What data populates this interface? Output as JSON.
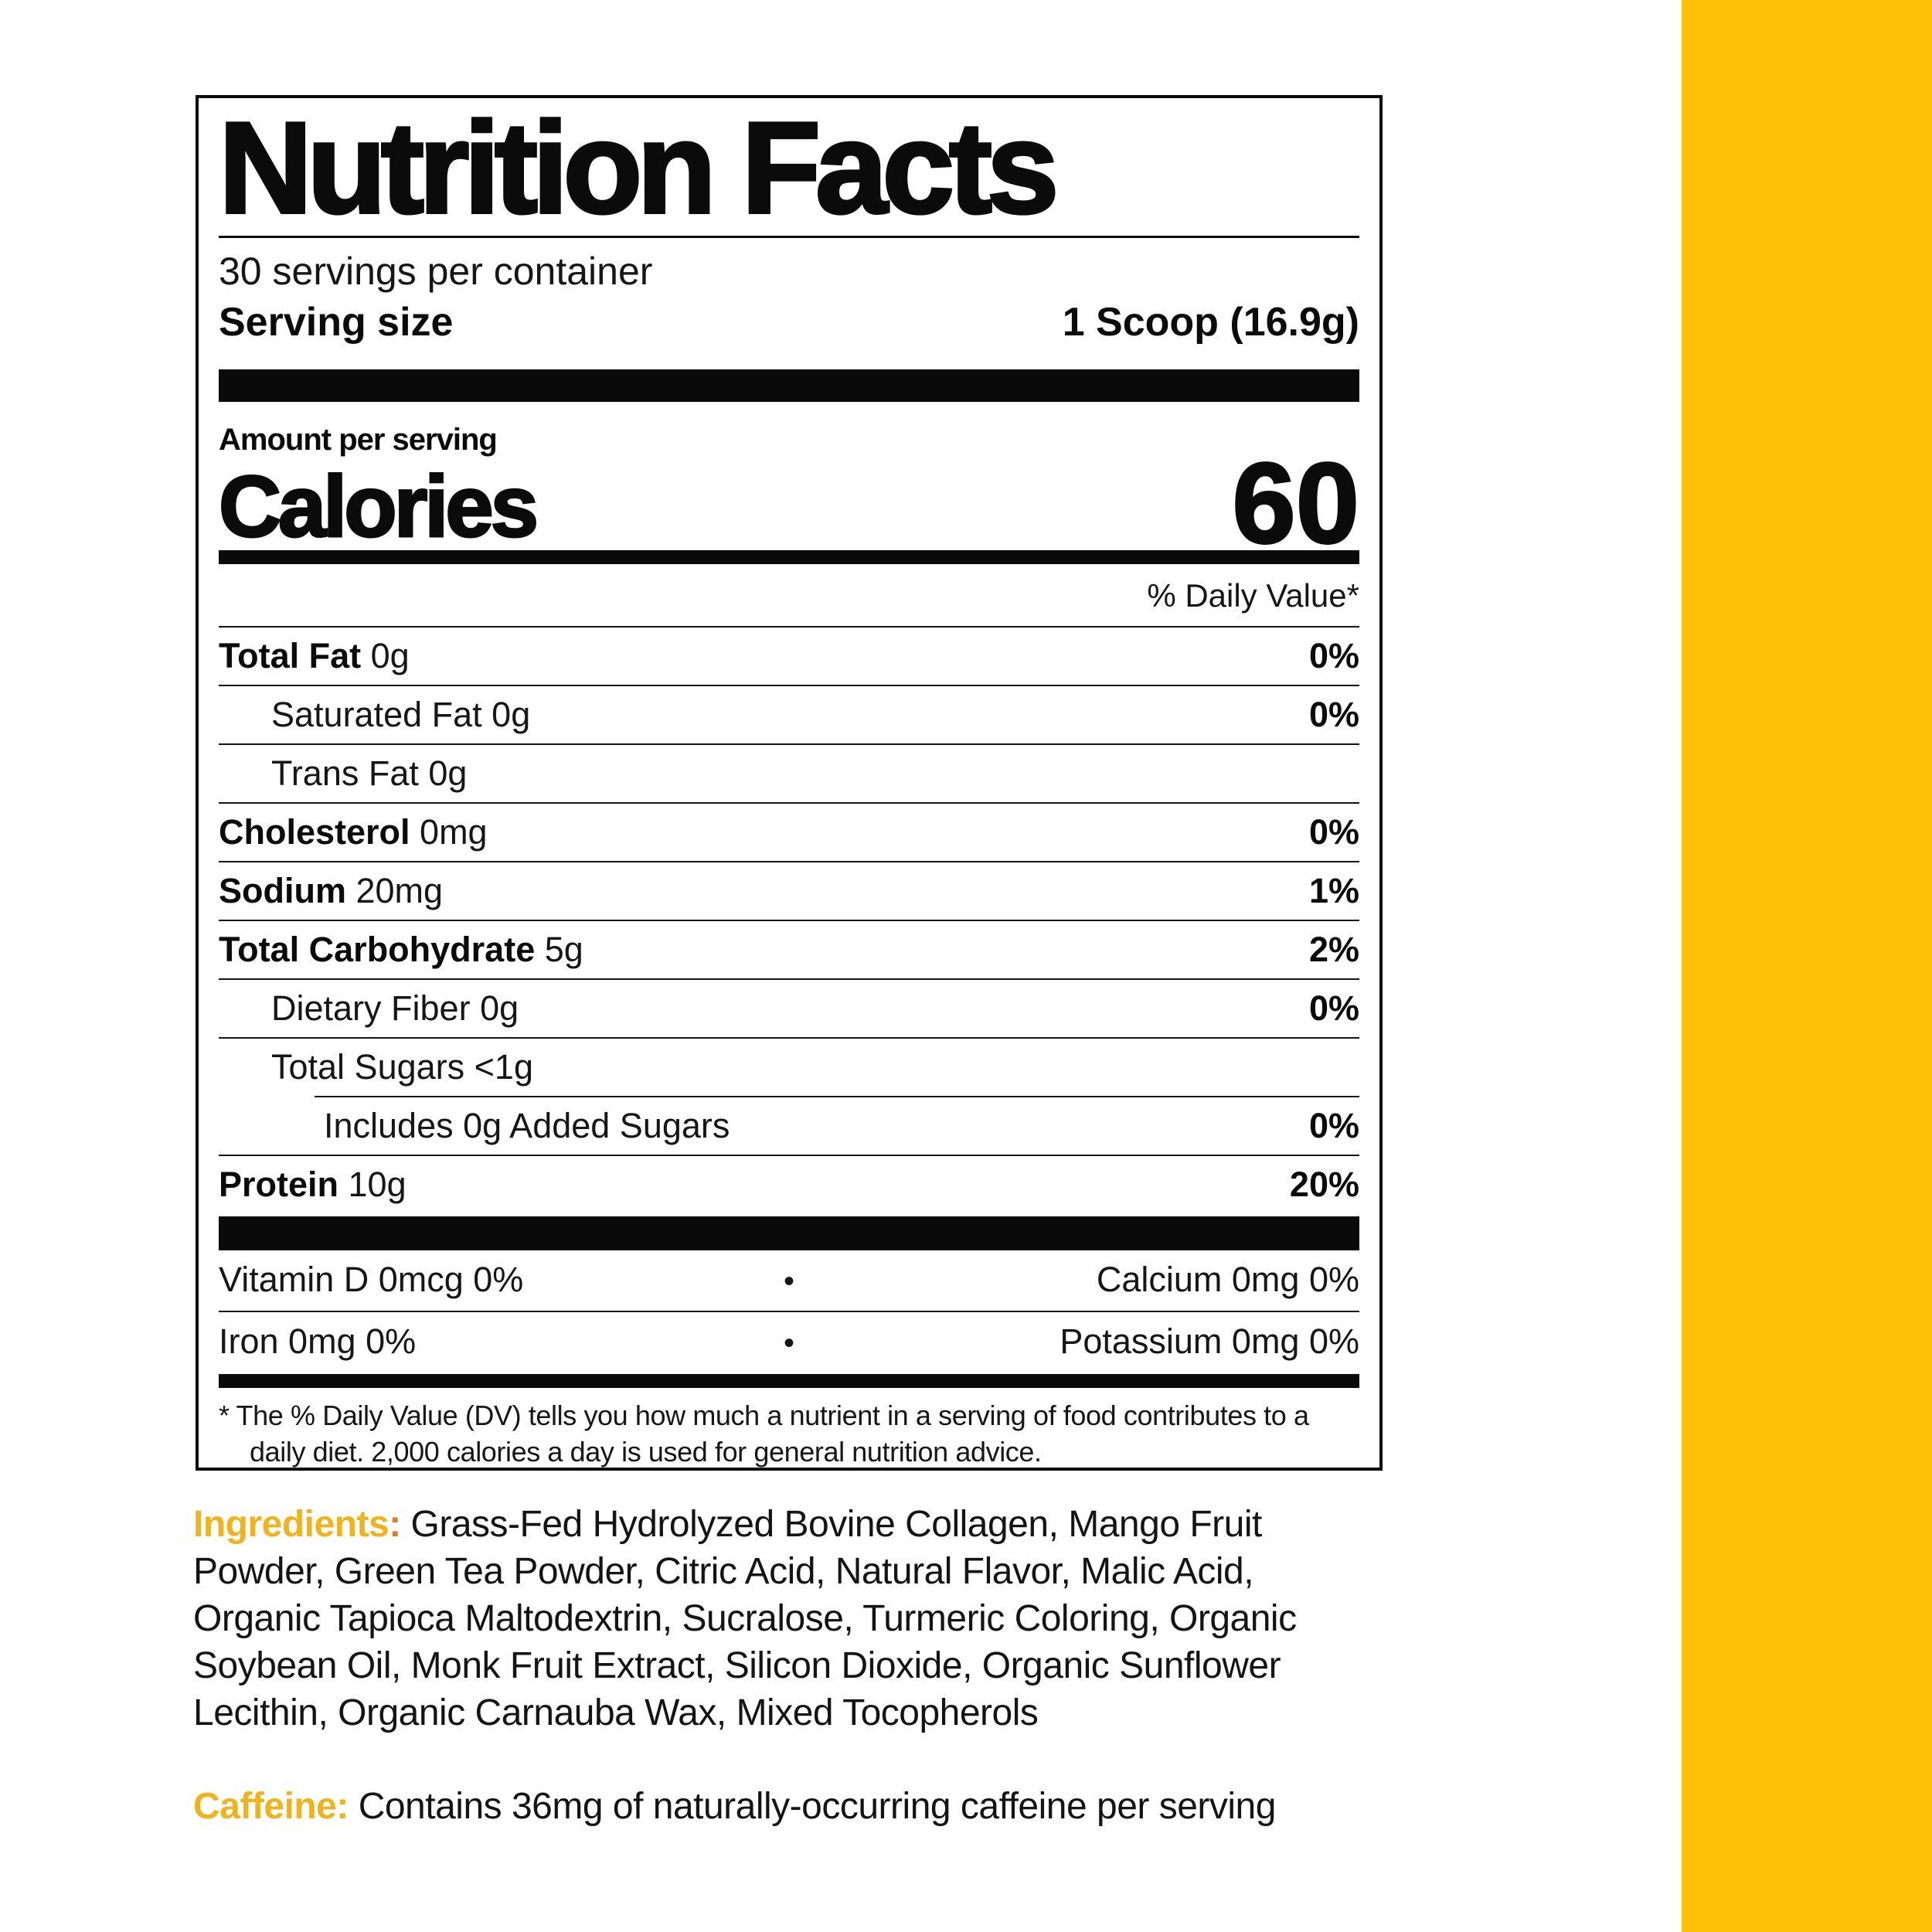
{
  "colors": {
    "stripe": "#FFC107",
    "ingredients_label_gold": "#F1B31C",
    "ingredients_colon_orange": "#DB7E33",
    "caffeine_label_gold": "#F1B31C",
    "text_black": "#0b0b0b"
  },
  "panel": {
    "title": "Nutrition Facts",
    "servings_per_container": "30 servings per container",
    "serving_size_label": "Serving size",
    "serving_size_value": "1 Scoop (16.9g)",
    "amount_per_serving": "Amount per serving",
    "calories_label": "Calories",
    "calories_value": "60",
    "daily_value_header": "% Daily Value*",
    "rows": [
      {
        "bold": "Total Fat",
        "rest": " 0g",
        "dv": "0%"
      },
      {
        "bold": "",
        "rest": "Saturated Fat 0g",
        "dv": "0%"
      },
      {
        "bold": "",
        "rest": "Trans Fat 0g",
        "dv": ""
      },
      {
        "bold": "Cholesterol",
        "rest": " 0mg",
        "dv": "0%"
      },
      {
        "bold": "Sodium",
        "rest": " 20mg",
        "dv": "1%"
      },
      {
        "bold": "Total Carbohydrate",
        "rest": " 5g",
        "dv": "2%"
      },
      {
        "bold": "",
        "rest": "Dietary Fiber 0g",
        "dv": "0%"
      },
      {
        "bold": "",
        "rest": "Total Sugars <1g",
        "dv": ""
      },
      {
        "bold": "",
        "rest": "Includes 0g Added Sugars",
        "dv": "0%"
      },
      {
        "bold": "Protein",
        "rest": " 10g",
        "dv": "20%"
      }
    ],
    "micronutrients": [
      {
        "left": "Vitamin D 0mcg 0%",
        "bullet": "•",
        "right": "Calcium 0mg 0%"
      },
      {
        "left": "Iron 0mg 0%",
        "bullet": "•",
        "right": "Potassium 0mg 0%"
      }
    ],
    "footnote": "* The % Daily Value (DV) tells you how much a nutrient in a serving of food contributes to a daily diet. 2,000 calories a day is used for general nutrition advice."
  },
  "ingredients": {
    "label": "Ingredients",
    "colon": ":",
    "text": " Grass-Fed Hydrolyzed Bovine Collagen, Mango Fruit Powder, Green Tea Powder, Citric Acid, Natural Flavor, Malic Acid, Organic Tapioca Maltodextrin, Sucralose, Turmeric Coloring, Organic Soybean Oil, Monk Fruit Extract, Silicon Dioxide, Organic Sunflower Lecithin, Organic Carnauba Wax, Mixed Tocopherols"
  },
  "caffeine": {
    "label": "Caffeine:",
    "text": " Contains 36mg of naturally-occurring caffeine per serving"
  }
}
